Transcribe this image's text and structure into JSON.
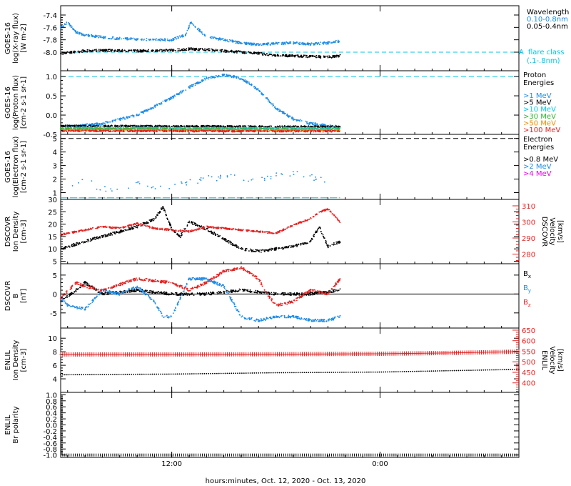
{
  "x_axis": {
    "label": "hours:minutes, Oct. 12, 2020 - Oct. 13, 2020",
    "ticks": [
      {
        "label": "12:00",
        "hour": 12
      },
      {
        "label": "0:00",
        "hour": 24
      }
    ],
    "range_hours": [
      5.6,
      32.0
    ],
    "data_end_hour": 21.7
  },
  "colors": {
    "blue": "#1e8ce6",
    "black": "#000000",
    "cyan": "#00c8e6",
    "green": "#32b432",
    "orange": "#f08c00",
    "red": "#e61e1e",
    "magenta": "#e600e6"
  },
  "chart_data": [
    {
      "id": "goes-xray",
      "type": "scatter",
      "ylabel_lines": [
        "GOES-16",
        "log(X-ray flux)",
        "[W m-2]"
      ],
      "ylim": [
        -8.3,
        -7.25
      ],
      "yticks": [
        -8.0,
        -7.8,
        -7.6,
        -7.4
      ],
      "ytick_labels": [
        "-8.0",
        "-7.8",
        "-7.6",
        "-7.4"
      ],
      "legend_title": "Wavelength",
      "series": [
        {
          "name": "0.10-0.8nm",
          "color": "blue",
          "x": [
            5.6,
            6.0,
            6.5,
            7.0,
            8.0,
            9.0,
            10.0,
            11.0,
            12.0,
            12.8,
            13.1,
            13.5,
            14.0,
            15.0,
            16.0,
            17.0,
            18.0,
            19.0,
            20.0,
            21.0,
            21.7
          ],
          "y": [
            -7.6,
            -7.52,
            -7.68,
            -7.72,
            -7.76,
            -7.78,
            -7.79,
            -7.8,
            -7.8,
            -7.72,
            -7.52,
            -7.62,
            -7.75,
            -7.8,
            -7.85,
            -7.88,
            -7.86,
            -7.85,
            -7.87,
            -7.85,
            -7.82
          ]
        },
        {
          "name": "0.05-0.4nm",
          "color": "black",
          "x": [
            5.6,
            7.0,
            8.0,
            10.0,
            12.0,
            13.0,
            14.0,
            15.0,
            16.0,
            17.0,
            18.0,
            19.0,
            20.0,
            21.0,
            21.7
          ],
          "y": [
            -8.02,
            -7.98,
            -7.97,
            -7.98,
            -7.97,
            -7.95,
            -7.96,
            -7.98,
            -8.0,
            -8.02,
            -8.05,
            -8.06,
            -8.07,
            -8.08,
            -8.06
          ]
        }
      ],
      "reference": {
        "value": -8.0,
        "letter": "A",
        "note": "flare class",
        "note2": "(.1-.8nm)"
      }
    },
    {
      "id": "goes-proton",
      "type": "scatter",
      "ylabel_lines": [
        "GOES-16",
        "log(Proton flux)",
        "[cm-2 s-1 sr-1]"
      ],
      "ylim": [
        -0.5,
        1.15
      ],
      "yticks": [
        -0.5,
        0.0,
        0.5,
        1.0
      ],
      "ytick_labels": [
        "-0.5",
        "0.0",
        "0.5",
        "1.0"
      ],
      "legend_title_lines": [
        "Proton",
        "Energies"
      ],
      "reference_value": 1.0,
      "series": [
        {
          "name": ">1 MeV",
          "color": "blue",
          "x": [
            6.0,
            8.0,
            10.0,
            11.0,
            12.0,
            13.0,
            14.0,
            15.0,
            15.8,
            16.5,
            17.0,
            17.5,
            18.0,
            19.0,
            20.0,
            21.0,
            21.7
          ],
          "y": [
            -0.3,
            -0.22,
            0.0,
            0.22,
            0.45,
            0.72,
            0.95,
            1.04,
            0.98,
            0.82,
            0.65,
            0.42,
            0.18,
            -0.1,
            -0.22,
            -0.28,
            -0.3
          ]
        },
        {
          "name": ">5 MeV",
          "color": "black",
          "x": [
            5.6,
            21.7
          ],
          "y": [
            -0.28,
            -0.3
          ]
        },
        {
          "name": ">10 MeV",
          "color": "cyan",
          "x": [
            5.6,
            21.7
          ],
          "y": [
            -0.33,
            -0.34
          ]
        },
        {
          "name": ">30 MeV",
          "color": "green",
          "x": [
            5.6,
            21.7
          ],
          "y": [
            -0.36,
            -0.37
          ]
        },
        {
          "name": ">50 MeV",
          "color": "orange",
          "x": [
            5.6,
            21.7
          ],
          "y": [
            -0.38,
            -0.39
          ]
        },
        {
          "name": ">100 MeV",
          "color": "red",
          "x": [
            5.6,
            21.7
          ],
          "y": [
            -0.41,
            -0.42
          ]
        }
      ]
    },
    {
      "id": "goes-electron",
      "type": "scatter",
      "ylabel_lines": [
        "GOES-16",
        "log(Electron flux)",
        "[cm-2 s-1 sr-1]"
      ],
      "ylim": [
        0.5,
        5.3
      ],
      "yticks": [
        1,
        2,
        3,
        4,
        5
      ],
      "ytick_labels": [
        "1",
        "2",
        "3",
        "4",
        "5"
      ],
      "legend_title_lines": [
        "Electron",
        "Energies"
      ],
      "reference_value": 5.0,
      "series": [
        {
          "name": ">0.8 MeV",
          "color": "black",
          "x": [],
          "y": []
        },
        {
          "name": ">2 MeV",
          "color": "blue",
          "x": [
            6.0,
            7.0,
            8.0,
            10.0,
            12.0,
            13.0,
            14.0,
            15.0,
            16.0,
            17.0,
            18.0,
            19.0,
            20.0,
            21.0
          ],
          "y": [
            1.5,
            2.0,
            1.2,
            1.6,
            1.4,
            1.8,
            2.0,
            2.2,
            2.1,
            2.0,
            2.3,
            2.5,
            2.2,
            1.8
          ]
        },
        {
          "name": ">4 MeV",
          "color": "magenta",
          "x": [],
          "y": []
        }
      ],
      "baseline": {
        "color": "cyan",
        "value": 0.62
      }
    },
    {
      "id": "dscovr-density",
      "type": "scatter",
      "ylabel_lines": [
        "DSCOVR",
        "Ion Density",
        "[cm-3]"
      ],
      "ylim": [
        4,
        30
      ],
      "yticks": [
        5,
        10,
        15,
        20,
        25,
        30
      ],
      "ytick_labels": [
        "5",
        "10",
        "15",
        "20",
        "25",
        "30"
      ],
      "right_axis": {
        "label_lines": [
          "DSCOVR",
          "Velocity",
          "[km/s]"
        ],
        "ylim": [
          274,
          314
        ],
        "ticks": [
          280,
          290,
          300,
          310
        ],
        "tick_labels": [
          "280",
          "290",
          "300",
          "310"
        ],
        "color": "red"
      },
      "series": [
        {
          "name": "Density",
          "color": "black",
          "axis": "left",
          "x": [
            5.6,
            7.0,
            8.0,
            9.0,
            10.0,
            11.0,
            11.5,
            12.0,
            12.5,
            13.0,
            14.0,
            15.0,
            16.0,
            17.0,
            18.0,
            19.0,
            20.0,
            20.5,
            21.0,
            21.7
          ],
          "y": [
            10,
            13,
            15,
            17,
            19,
            22,
            27,
            18,
            15,
            21,
            18,
            14,
            10,
            9,
            10,
            11,
            13,
            19,
            11,
            13
          ]
        },
        {
          "name": "Velocity",
          "color": "red",
          "axis": "right",
          "x": [
            5.6,
            7.0,
            8.0,
            9.0,
            10.0,
            11.0,
            12.0,
            13.0,
            14.0,
            15.0,
            16.0,
            17.0,
            18.0,
            19.0,
            20.0,
            20.5,
            21.0,
            21.7
          ],
          "y": [
            292,
            295,
            297,
            296,
            299,
            296,
            295,
            294,
            297,
            296,
            295,
            294,
            293,
            298,
            302,
            306,
            308,
            300
          ]
        }
      ]
    },
    {
      "id": "dscovr-b",
      "type": "scatter",
      "ylabel_lines": [
        "DSCOVR",
        "B",
        "[nT]"
      ],
      "ylim": [
        -9,
        8
      ],
      "yticks": [
        -5,
        0,
        5
      ],
      "ytick_labels": [
        "-5",
        "0",
        "5"
      ],
      "zero_line": true,
      "series": [
        {
          "name": "Bx",
          "label": "B",
          "sub": "x",
          "color": "black",
          "x": [
            5.6,
            6.5,
            7.0,
            8.0,
            10.0,
            12.0,
            14.0,
            16.0,
            18.0,
            20.0,
            21.7
          ],
          "y": [
            -2,
            1,
            3,
            0,
            1,
            0,
            0,
            1,
            0,
            0,
            1
          ]
        },
        {
          "name": "By",
          "label": "B",
          "sub": "y",
          "color": "blue",
          "x": [
            5.6,
            6.0,
            7.0,
            8.0,
            9.0,
            10.0,
            11.0,
            11.5,
            12.0,
            13.0,
            14.0,
            15.0,
            16.0,
            17.0,
            18.0,
            19.0,
            20.0,
            21.0,
            21.7
          ],
          "y": [
            -1,
            -3,
            -4,
            1,
            0,
            2,
            -2,
            -6,
            -6,
            4,
            4,
            2,
            -6,
            -7,
            -6,
            -6,
            -7,
            -7,
            -6
          ]
        },
        {
          "name": "Bz",
          "label": "B",
          "sub": "z",
          "color": "red",
          "x": [
            5.6,
            6.5,
            7.0,
            8.0,
            10.0,
            12.0,
            13.0,
            14.0,
            15.0,
            16.0,
            17.0,
            17.5,
            18.0,
            19.0,
            20.0,
            21.0,
            21.7
          ],
          "y": [
            -1,
            3,
            2,
            1,
            4,
            3,
            1,
            3,
            6,
            7,
            4,
            0,
            -3,
            -2,
            1,
            0,
            4
          ]
        }
      ]
    },
    {
      "id": "enlil-density",
      "type": "line",
      "ylabel_lines": [
        "ENLIL",
        "Ion Density",
        "[cm-3]"
      ],
      "ylim": [
        2,
        11.5
      ],
      "yticks": [
        4,
        6,
        8,
        10
      ],
      "ytick_labels": [
        "4",
        "6",
        "8",
        "10"
      ],
      "right_axis": {
        "label_lines": [
          "ENLIL",
          "Velocity",
          "[km/s]"
        ],
        "ylim": [
          355,
          660
        ],
        "ticks": [
          400,
          450,
          500,
          550,
          600,
          650
        ],
        "tick_labels": [
          "400",
          "450",
          "500",
          "550",
          "600",
          "650"
        ],
        "color": "red"
      },
      "series": [
        {
          "name": "Density",
          "color": "black",
          "axis": "left",
          "x": [
            5.6,
            12.0,
            18.0,
            24.0,
            28.0,
            32.0
          ],
          "y": [
            4.6,
            4.7,
            4.9,
            5.0,
            5.2,
            5.4
          ]
        },
        {
          "name": "Velocity",
          "color": "red",
          "axis": "right",
          "x": [
            5.6,
            12.0,
            18.0,
            24.0,
            28.0,
            32.0
          ],
          "y": [
            535,
            535,
            536,
            538,
            542,
            548
          ]
        }
      ]
    },
    {
      "id": "enlil-polarity",
      "type": "line",
      "ylabel_lines": [
        "ENLIL",
        "Br polarity"
      ],
      "ylim": [
        -1.08,
        1.08
      ],
      "yticks": [
        -1.0,
        -0.8,
        -0.6,
        -0.4,
        -0.2,
        0.0,
        0.2,
        0.4,
        0.6,
        0.8,
        1.0
      ],
      "ytick_labels": [
        "-1.0",
        "-0.8",
        "-0.6",
        "-0.4",
        "-0.2",
        "0.0",
        "0.2",
        "0.4",
        "0.6",
        "0.8",
        "1.0"
      ],
      "series": [
        {
          "name": "Br polarity",
          "color": "black",
          "x": [
            5.6,
            32.0
          ],
          "y": [
            -1.0,
            -1.0
          ]
        }
      ]
    }
  ]
}
